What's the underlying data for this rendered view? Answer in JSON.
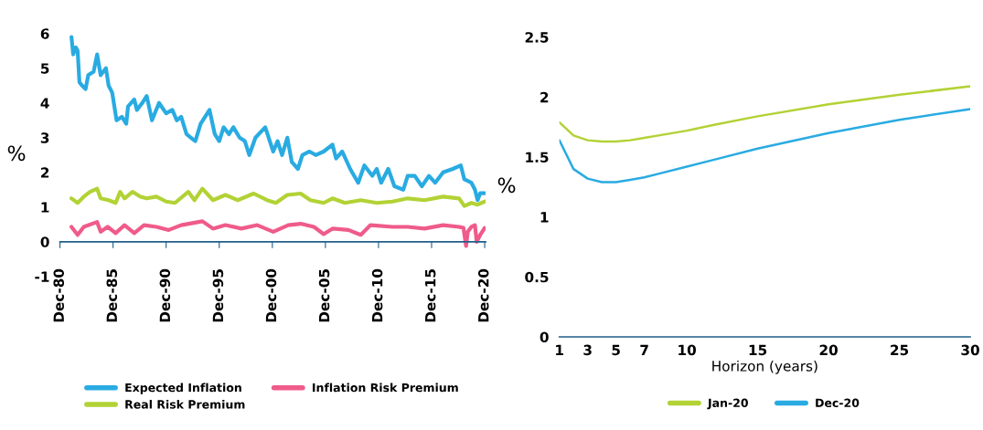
{
  "chart_data": [
    {
      "type": "line",
      "ylabel": "%",
      "ylim": [
        -1,
        6
      ],
      "yticks": [
        -1,
        0,
        1,
        2,
        3,
        4,
        5,
        6
      ],
      "xlim": [
        "1980-12",
        "2021-01"
      ],
      "xticks": [
        {
          "value": "1980-12",
          "label": "Dec-80"
        },
        {
          "value": "1985-12",
          "label": "Dec-85"
        },
        {
          "value": "1990-12",
          "label": "Dec-90"
        },
        {
          "value": "1995-12",
          "label": "Dec-95"
        },
        {
          "value": "2000-12",
          "label": "Dec-00"
        },
        {
          "value": "2005-12",
          "label": "Dec-05"
        },
        {
          "value": "2010-12",
          "label": "Dec-10"
        },
        {
          "value": "2015-12",
          "label": "Dec-15"
        },
        {
          "value": "2020-12",
          "label": "Dec-20"
        }
      ],
      "grid": false,
      "legend": "bottom",
      "marker": "none",
      "line_style": "solid",
      "series": [
        {
          "name": "Expected Inflation",
          "color": "#29abe2",
          "x": [
            "1982-01",
            "1982-03",
            "1982-06",
            "1982-08",
            "1982-10",
            "1983-01",
            "1983-05",
            "1983-08",
            "1984-02",
            "1984-06",
            "1984-10",
            "1985-04",
            "1985-07",
            "1985-11",
            "1986-04",
            "1986-10",
            "1987-03",
            "1987-05",
            "1987-12",
            "1988-03",
            "1988-09",
            "1989-02",
            "1989-08",
            "1990-04",
            "1990-12",
            "1991-07",
            "1991-12",
            "1992-05",
            "1992-11",
            "1993-04",
            "1993-09",
            "1994-03",
            "1995-01",
            "1995-07",
            "1995-12",
            "1996-05",
            "1996-11",
            "1997-04",
            "1997-11",
            "1998-05",
            "1998-10",
            "1999-05",
            "2000-04",
            "2001-01",
            "2001-06",
            "2001-11",
            "2002-05",
            "2002-10",
            "2003-05",
            "2003-10",
            "2004-06",
            "2005-01",
            "2005-10",
            "2006-08",
            "2006-12",
            "2007-07",
            "2008-04",
            "2009-01",
            "2009-08",
            "2010-05",
            "2010-10",
            "2011-03",
            "2011-11",
            "2012-06",
            "2013-04",
            "2013-09",
            "2014-05",
            "2015-01",
            "2015-09",
            "2016-04",
            "2017-01",
            "2017-12",
            "2018-09",
            "2019-01",
            "2019-09",
            "2020-01",
            "2020-04",
            "2020-07",
            "2020-12"
          ],
          "values": [
            5.9,
            5.4,
            5.6,
            5.5,
            4.6,
            4.5,
            4.4,
            4.8,
            4.9,
            5.4,
            4.8,
            5.0,
            4.5,
            4.3,
            3.5,
            3.6,
            3.4,
            3.9,
            4.1,
            3.8,
            4.0,
            4.2,
            3.5,
            4.0,
            3.7,
            3.8,
            3.5,
            3.6,
            3.1,
            3.0,
            2.9,
            3.4,
            3.8,
            3.1,
            2.9,
            3.3,
            3.1,
            3.3,
            3.0,
            2.9,
            2.5,
            3.0,
            3.3,
            2.6,
            2.9,
            2.5,
            3.0,
            2.3,
            2.1,
            2.5,
            2.6,
            2.5,
            2.6,
            2.8,
            2.4,
            2.6,
            2.1,
            1.7,
            2.2,
            1.9,
            2.1,
            1.7,
            2.1,
            1.6,
            1.5,
            1.9,
            1.9,
            1.6,
            1.9,
            1.7,
            2.0,
            2.1,
            2.2,
            1.8,
            1.7,
            1.5,
            1.2,
            1.4,
            1.4
          ]
        },
        {
          "name": "Real Risk Premium",
          "color": "#b2d235",
          "x": [
            "1982-01",
            "1982-08",
            "1983-03",
            "1983-10",
            "1984-06",
            "1984-10",
            "1985-07",
            "1986-03",
            "1986-08",
            "1987-01",
            "1987-10",
            "1988-07",
            "1989-02",
            "1990-01",
            "1990-12",
            "1991-10",
            "1993-01",
            "1993-08",
            "1994-05",
            "1995-05",
            "1996-07",
            "1997-09",
            "1999-03",
            "2000-06",
            "2001-04",
            "2002-05",
            "2003-08",
            "2004-07",
            "2005-10",
            "2006-08",
            "2007-10",
            "2009-04",
            "2010-10",
            "2012-04",
            "2013-09",
            "2015-04",
            "2017-01",
            "2018-07",
            "2019-01",
            "2019-09",
            "2020-04",
            "2020-12"
          ],
          "values": [
            1.25,
            1.12,
            1.3,
            1.44,
            1.53,
            1.25,
            1.2,
            1.12,
            1.44,
            1.25,
            1.44,
            1.3,
            1.25,
            1.3,
            1.16,
            1.12,
            1.44,
            1.2,
            1.53,
            1.2,
            1.35,
            1.2,
            1.39,
            1.2,
            1.12,
            1.35,
            1.39,
            1.2,
            1.12,
            1.25,
            1.12,
            1.2,
            1.12,
            1.16,
            1.25,
            1.2,
            1.3,
            1.25,
            1.03,
            1.12,
            1.07,
            1.16
          ]
        },
        {
          "name": "Inflation Risk Premium",
          "color": "#ef5b8a",
          "x": [
            "1982-01",
            "1982-08",
            "1983-03",
            "1984-06",
            "1984-10",
            "1985-06",
            "1986-03",
            "1987-01",
            "1987-12",
            "1988-11",
            "1990-01",
            "1991-03",
            "1992-05",
            "1994-05",
            "1995-05",
            "1996-07",
            "1998-01",
            "1999-07",
            "2001-01",
            "2002-06",
            "2003-08",
            "2004-11",
            "2005-10",
            "2006-08",
            "2008-02",
            "2009-04",
            "2010-03",
            "2012-04",
            "2013-09",
            "2015-04",
            "2017-01",
            "2018-07",
            "2018-12",
            "2019-03",
            "2019-05",
            "2019-09",
            "2020-01",
            "2020-03",
            "2020-07",
            "2020-12"
          ],
          "values": [
            0.43,
            0.2,
            0.43,
            0.57,
            0.29,
            0.43,
            0.25,
            0.48,
            0.25,
            0.48,
            0.43,
            0.34,
            0.48,
            0.59,
            0.38,
            0.48,
            0.38,
            0.48,
            0.29,
            0.48,
            0.52,
            0.43,
            0.22,
            0.38,
            0.34,
            0.2,
            0.48,
            0.43,
            0.43,
            0.38,
            0.48,
            0.43,
            0.4,
            -0.12,
            0.29,
            0.43,
            0.48,
            0.0,
            0.2,
            0.4
          ]
        }
      ]
    },
    {
      "type": "line",
      "ylabel": "%",
      "xlabel": "Horizon (years)",
      "ylim": [
        0,
        2.5
      ],
      "yticks": [
        0,
        0.5,
        1,
        1.5,
        2,
        2.5
      ],
      "xlim": [
        1,
        30
      ],
      "xticks": [
        1,
        3,
        5,
        7,
        10,
        15,
        20,
        25,
        30
      ],
      "grid": false,
      "legend": "bottom",
      "marker": "none",
      "line_style": "solid",
      "x": [
        1,
        2,
        3,
        4,
        5,
        6,
        7,
        8,
        10,
        12,
        15,
        20,
        25,
        30
      ],
      "series": [
        {
          "name": "Jan-20",
          "color": "#b2d235",
          "values": [
            1.79,
            1.68,
            1.64,
            1.63,
            1.63,
            1.64,
            1.66,
            1.68,
            1.72,
            1.77,
            1.84,
            1.94,
            2.02,
            2.09
          ]
        },
        {
          "name": "Dec-20",
          "color": "#29abe2",
          "values": [
            1.64,
            1.4,
            1.32,
            1.29,
            1.29,
            1.31,
            1.33,
            1.36,
            1.42,
            1.48,
            1.57,
            1.7,
            1.81,
            1.9
          ]
        }
      ]
    }
  ]
}
